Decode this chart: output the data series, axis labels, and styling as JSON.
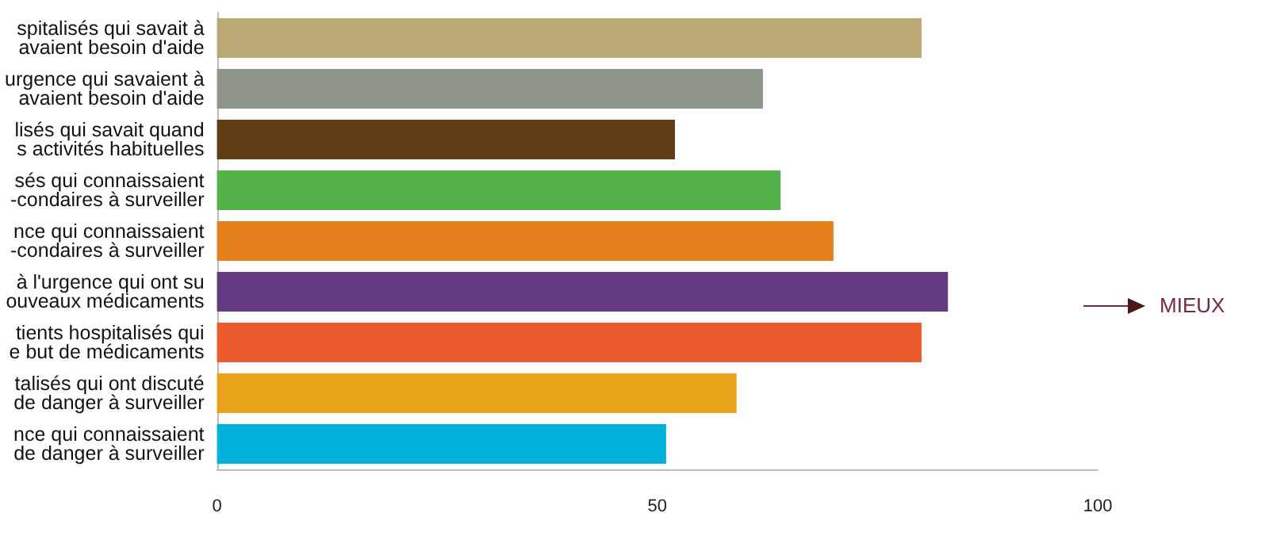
{
  "chart_data": {
    "type": "bar",
    "orientation": "horizontal",
    "categories": [
      "spitalisés qui savait à\navaient besoin d'aide",
      "urgence qui savaient à\navaient besoin d'aide",
      "lisés qui savait quand\ns activités habituelles",
      "sés qui connaissaient\n-condaires à surveiller",
      "nce qui connaissaient\n-condaires à surveiller",
      "à l'urgence qui ont su\nouveaux médicaments",
      "tients hospitalisés qui\ne but de médicaments",
      "talisés qui ont discuté\nde danger à surveiller",
      "nce qui connaissaient\nde danger à surveiller"
    ],
    "values": [
      80,
      62,
      52,
      64,
      70,
      83,
      80,
      59,
      51
    ],
    "colors": [
      "#bba874",
      "#8e968b",
      "#633d14",
      "#55b24a",
      "#e6801d",
      "#643a80",
      "#ed5a2b",
      "#e8a31a",
      "#00b1dc"
    ],
    "xlim": [
      0,
      100
    ],
    "xticks": [
      0,
      50,
      100
    ],
    "grid": false,
    "annotations": [
      "MIEUX"
    ]
  }
}
